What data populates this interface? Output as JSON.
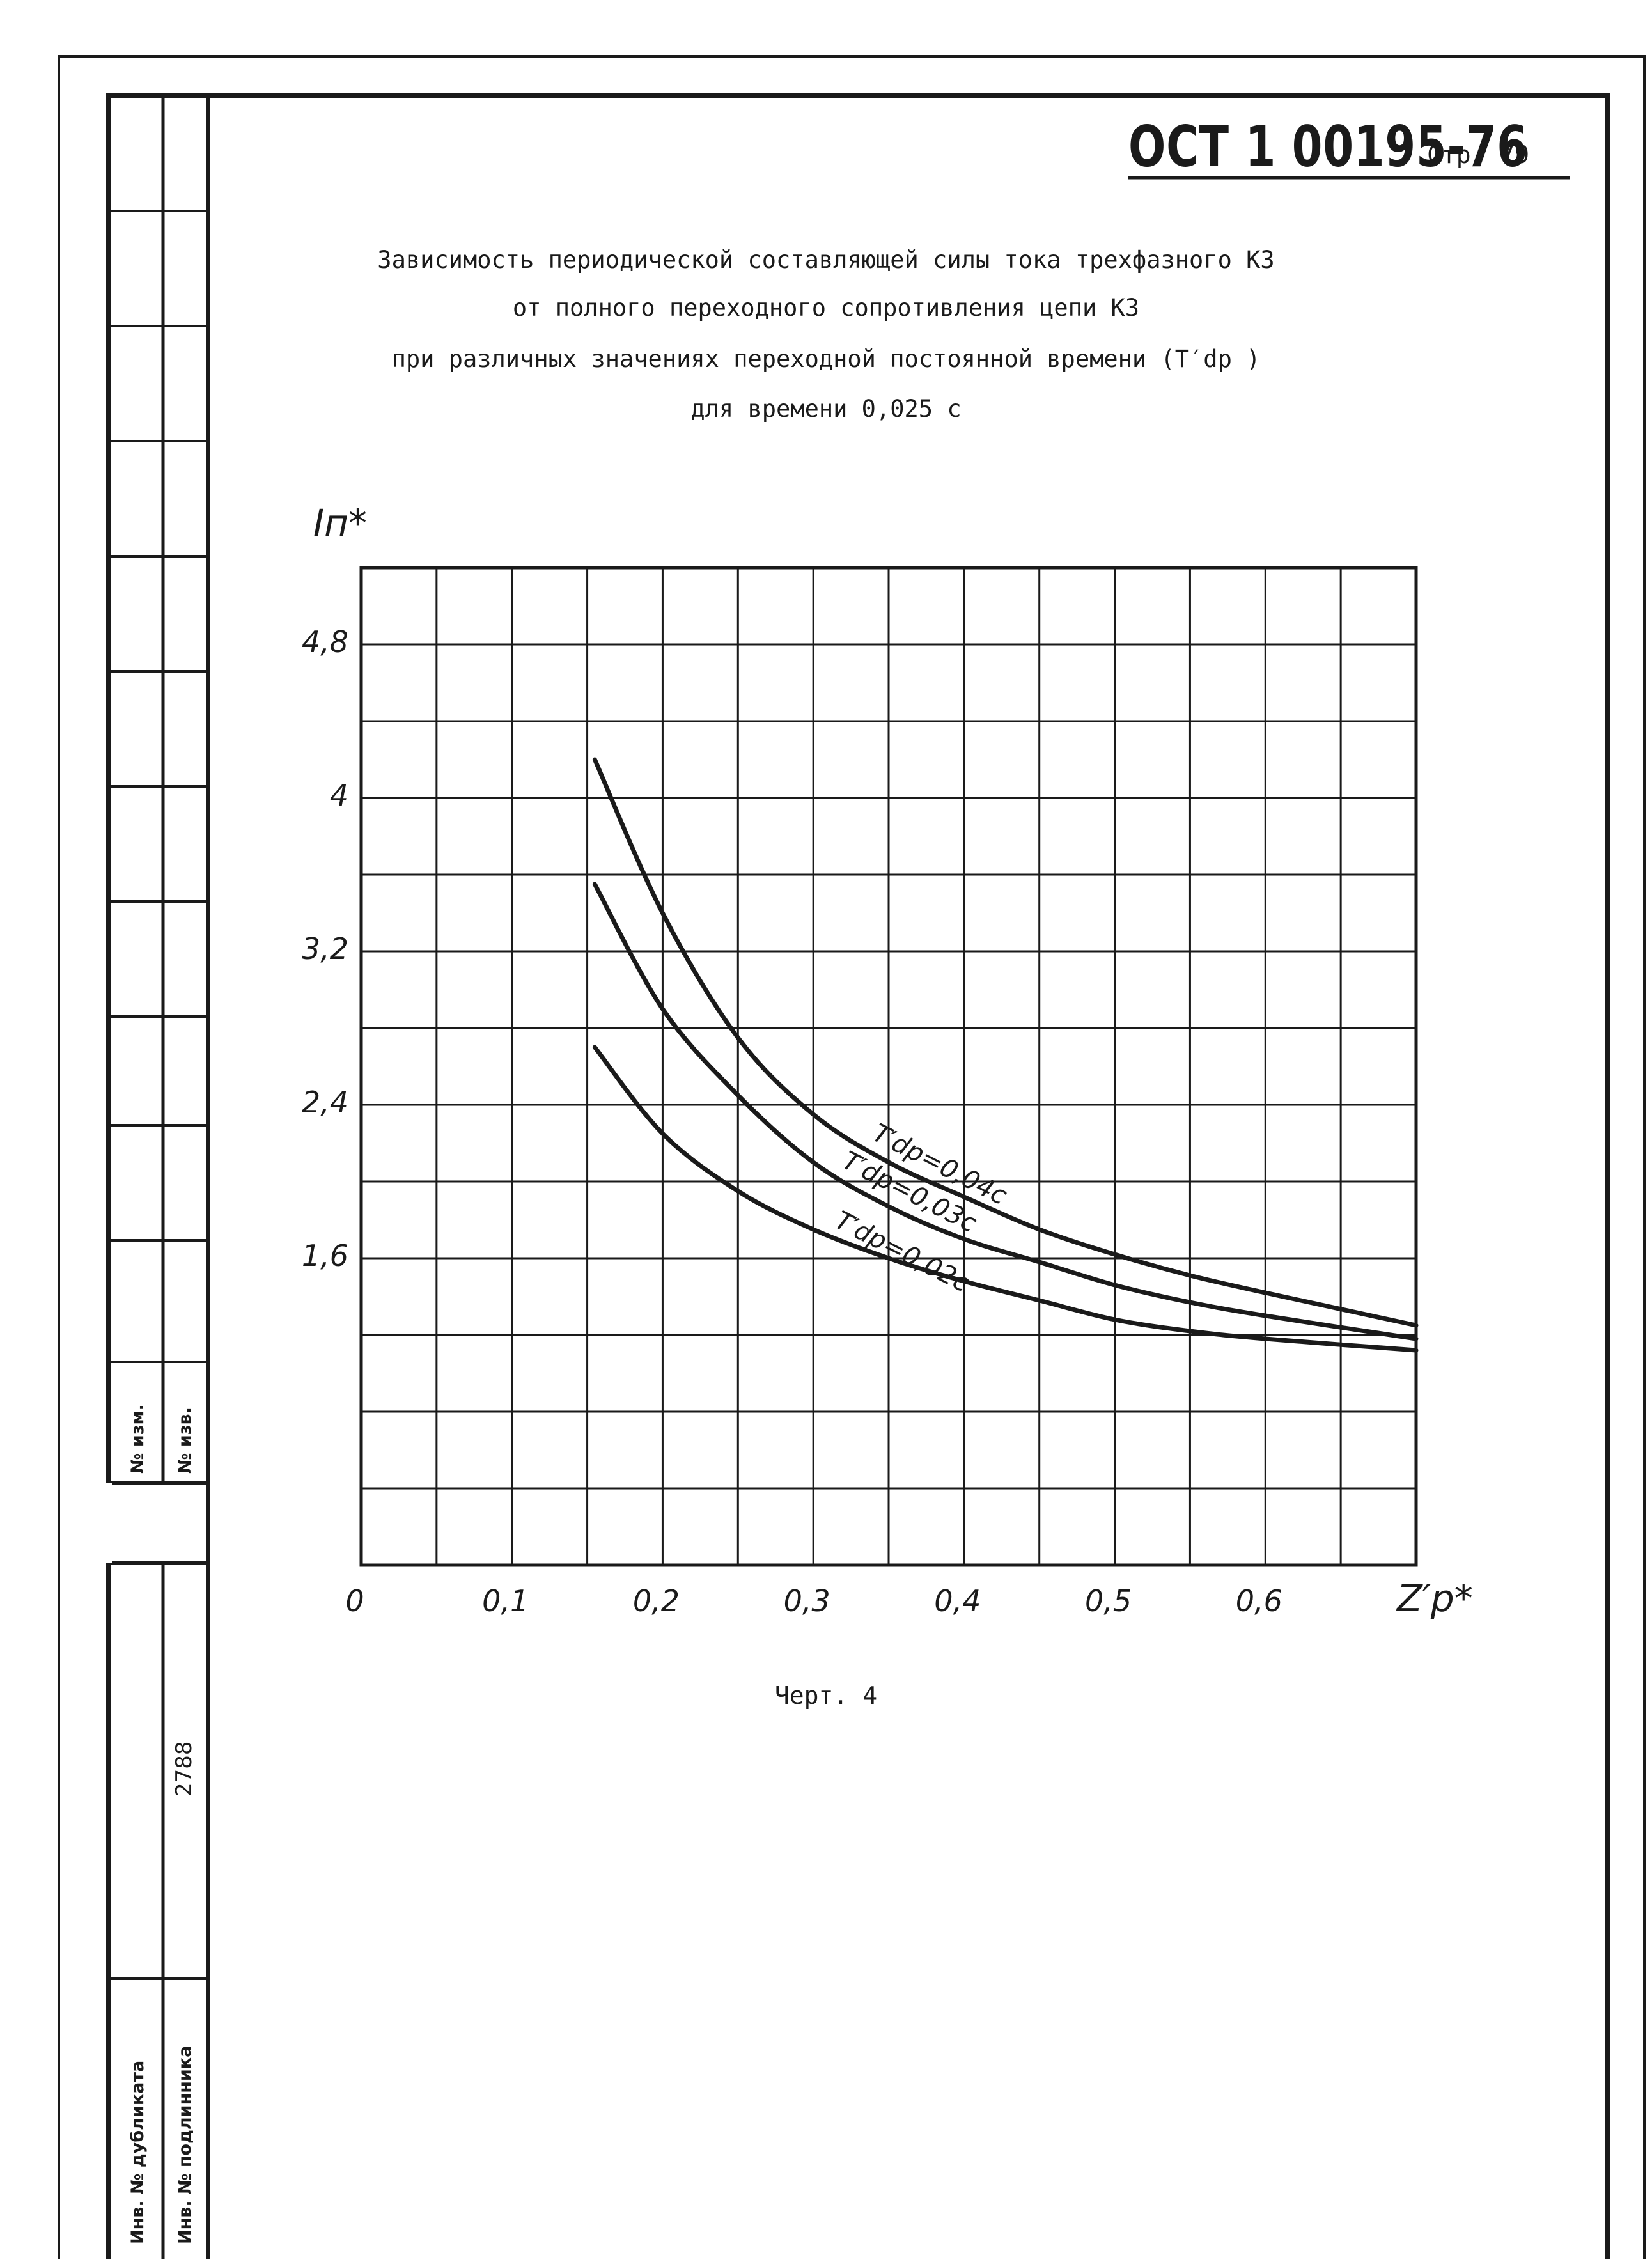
{
  "header": {
    "doc_code": "ОСТ 1 00195-76",
    "page_label": "Стр.",
    "page_number": "79"
  },
  "title_lines": [
    "Зависимость периодической составляющей силы тока трехфазного КЗ",
    "от полного переходного сопротивления цепи КЗ",
    "при различных значениях переходной постоянной времени (T′dp )",
    "для времени 0,025 с"
  ],
  "side_stamp": {
    "label_change_no": "№ изм.",
    "label_notice_no": "№ изв.",
    "label_dup_inv": "Инв. № дубликата",
    "label_orig_inv": "Инв. № подлинника",
    "orig_inv_value": "2788"
  },
  "caption": "Черт. 4",
  "colors": {
    "ink": "#1a1a1a",
    "paper": "#ffffff"
  },
  "chart_data": {
    "type": "line",
    "title": "",
    "xlabel": "Z′p*",
    "ylabel": "Iп*",
    "xlim": [
      0,
      0.7
    ],
    "ylim": [
      0,
      5.2
    ],
    "x_ticks": [
      0,
      0.1,
      0.2,
      0.3,
      0.4,
      0.5,
      0.6
    ],
    "x_tick_labels": [
      "0",
      "0,1",
      "0,2",
      "0,3",
      "0,4",
      "0,5",
      "0,6"
    ],
    "y_ticks": [
      1.6,
      2.4,
      3.2,
      4,
      4.8
    ],
    "y_tick_labels": [
      "1,6",
      "2,4",
      "3,2",
      "4",
      "4,8"
    ],
    "grid": true,
    "grid_step_x": 0.05,
    "grid_step_y": 0.4,
    "legend": "inline labels on curves",
    "series": [
      {
        "name": "T′dp=0,04с",
        "x": [
          0.155,
          0.2,
          0.25,
          0.3,
          0.35,
          0.4,
          0.45,
          0.5,
          0.55,
          0.6,
          0.7
        ],
        "y": [
          4.2,
          3.4,
          2.75,
          2.35,
          2.1,
          1.92,
          1.75,
          1.62,
          1.51,
          1.42,
          1.25
        ]
      },
      {
        "name": "T′dp=0,03с",
        "x": [
          0.155,
          0.2,
          0.25,
          0.3,
          0.35,
          0.4,
          0.45,
          0.5,
          0.55,
          0.6,
          0.7
        ],
        "y": [
          3.55,
          2.9,
          2.45,
          2.1,
          1.87,
          1.7,
          1.58,
          1.46,
          1.37,
          1.3,
          1.18
        ]
      },
      {
        "name": "T′dp=0,02с",
        "x": [
          0.155,
          0.2,
          0.25,
          0.3,
          0.35,
          0.4,
          0.45,
          0.5,
          0.55,
          0.6,
          0.7
        ],
        "y": [
          2.7,
          2.25,
          1.95,
          1.75,
          1.6,
          1.48,
          1.38,
          1.28,
          1.22,
          1.18,
          1.12
        ]
      }
    ]
  }
}
